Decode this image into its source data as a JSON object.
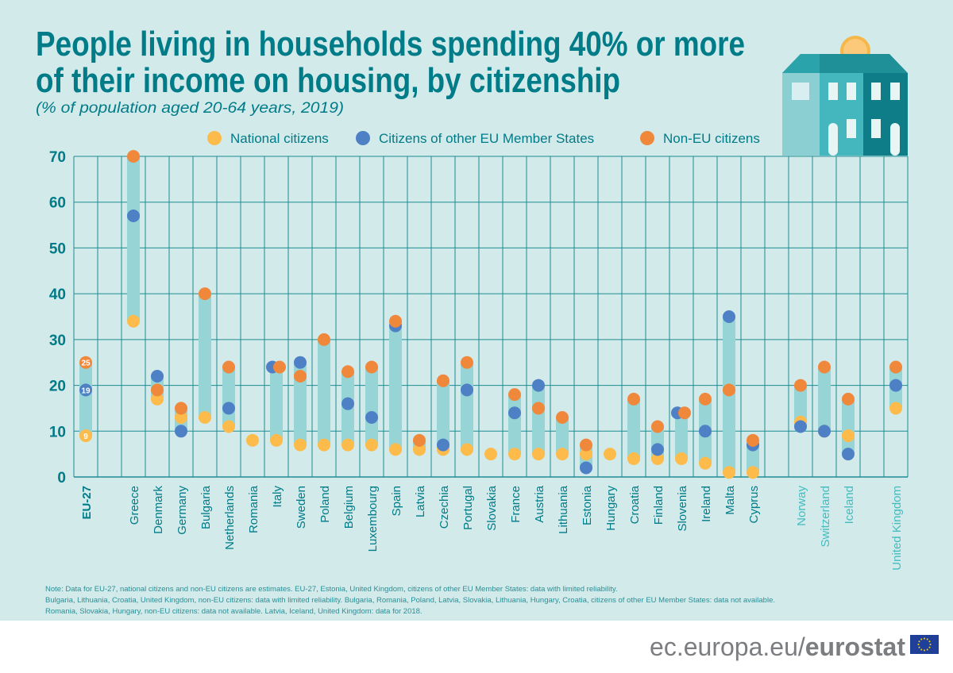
{
  "title_line1": "People living in households spending 40% or more",
  "title_line2": "of their income on housing, by citizenship",
  "subtitle": "(% of population aged 20-64 years, 2019)",
  "colors": {
    "background": "#d2eaea",
    "range_bar": "#96d4d6",
    "national": "#fdbb4c",
    "other_eu": "#4e80c6",
    "non_eu": "#f0883c",
    "title": "#007b88",
    "grid": "#1e8c94"
  },
  "legend": [
    "National citizens",
    "Citizens of other EU Member States",
    "Non-EU citizens"
  ],
  "notes": [
    "Note: Data for EU-27, national citizens and non-EU citizens are estimates. EU-27, Estonia, United Kingdom, citizens of other EU Member States: data with limited reliability.",
    "Bulgaria, Lithuania, Croatia, United Kingdom, non-EU citizens: data with limited reliability. Bulgaria, Romania, Poland, Latvia, Slovakia, Lithuania, Hungary, Croatia, citizens of other EU Member States: data not available.",
    "Romania, Slovakia, Hungary, non-EU citizens: data not available. Latvia, Iceland, United Kingdom: data for 2018."
  ],
  "footer": {
    "site": "ec.europa.eu/",
    "brand": "eurostat"
  },
  "chart_data": {
    "type": "dot-range",
    "ylim": [
      0,
      70
    ],
    "yticks": [
      0,
      10,
      20,
      30,
      40,
      50,
      60,
      70
    ],
    "grid": true,
    "legend_position": "top",
    "series_names": [
      "National citizens",
      "Citizens of other EU Member States",
      "Non-EU citizens"
    ],
    "categories": [
      {
        "name": "EU-27",
        "group": "eu27",
        "slot": 0,
        "national": 9,
        "other_eu": 19,
        "non_eu": 25,
        "labels_shown": true
      },
      {
        "name": "Greece",
        "group": "eu",
        "slot": 2,
        "national": 34,
        "other_eu": 57,
        "non_eu": 70
      },
      {
        "name": "Denmark",
        "group": "eu",
        "slot": 3,
        "national": 17,
        "other_eu": 22,
        "non_eu": 19
      },
      {
        "name": "Germany",
        "group": "eu",
        "slot": 4,
        "national": 13,
        "other_eu": 10,
        "non_eu": 15
      },
      {
        "name": "Bulgaria",
        "group": "eu",
        "slot": 5,
        "national": 13,
        "other_eu": null,
        "non_eu": 40
      },
      {
        "name": "Netherlands",
        "group": "eu",
        "slot": 6,
        "national": 11,
        "other_eu": 15,
        "non_eu": 24
      },
      {
        "name": "Romania",
        "group": "eu",
        "slot": 7,
        "national": 8,
        "other_eu": null,
        "non_eu": null
      },
      {
        "name": "Italy",
        "group": "eu",
        "slot": 8,
        "national": 8,
        "other_eu": 24,
        "non_eu": 24
      },
      {
        "name": "Sweden",
        "group": "eu",
        "slot": 9,
        "national": 7,
        "other_eu": 25,
        "non_eu": 22
      },
      {
        "name": "Poland",
        "group": "eu",
        "slot": 10,
        "national": 7,
        "other_eu": null,
        "non_eu": 30
      },
      {
        "name": "Belgium",
        "group": "eu",
        "slot": 11,
        "national": 7,
        "other_eu": 16,
        "non_eu": 23
      },
      {
        "name": "Luxembourg",
        "group": "eu",
        "slot": 12,
        "national": 7,
        "other_eu": 13,
        "non_eu": 24
      },
      {
        "name": "Spain",
        "group": "eu",
        "slot": 13,
        "national": 6,
        "other_eu": 33,
        "non_eu": 34
      },
      {
        "name": "Latvia",
        "group": "eu",
        "slot": 14,
        "national": 6,
        "other_eu": null,
        "non_eu": 8
      },
      {
        "name": "Czechia",
        "group": "eu",
        "slot": 15,
        "national": 6,
        "other_eu": 7,
        "non_eu": 21
      },
      {
        "name": "Portugal",
        "group": "eu",
        "slot": 16,
        "national": 6,
        "other_eu": 19,
        "non_eu": 25
      },
      {
        "name": "Slovakia",
        "group": "eu",
        "slot": 17,
        "national": 5,
        "other_eu": null,
        "non_eu": null
      },
      {
        "name": "France",
        "group": "eu",
        "slot": 18,
        "national": 5,
        "other_eu": 14,
        "non_eu": 18
      },
      {
        "name": "Austria",
        "group": "eu",
        "slot": 19,
        "national": 5,
        "other_eu": 20,
        "non_eu": 15
      },
      {
        "name": "Lithuania",
        "group": "eu",
        "slot": 20,
        "national": 5,
        "other_eu": null,
        "non_eu": 13
      },
      {
        "name": "Estonia",
        "group": "eu",
        "slot": 21,
        "national": 5,
        "other_eu": 2,
        "non_eu": 7
      },
      {
        "name": "Hungary",
        "group": "eu",
        "slot": 22,
        "national": 5,
        "other_eu": null,
        "non_eu": null
      },
      {
        "name": "Croatia",
        "group": "eu",
        "slot": 23,
        "national": 4,
        "other_eu": null,
        "non_eu": 17
      },
      {
        "name": "Finland",
        "group": "eu",
        "slot": 24,
        "national": 4,
        "other_eu": 6,
        "non_eu": 11
      },
      {
        "name": "Slovenia",
        "group": "eu",
        "slot": 25,
        "national": 4,
        "other_eu": 14,
        "non_eu": 14
      },
      {
        "name": "Ireland",
        "group": "eu",
        "slot": 26,
        "national": 3,
        "other_eu": 10,
        "non_eu": 17
      },
      {
        "name": "Malta",
        "group": "eu",
        "slot": 27,
        "national": 1,
        "other_eu": 35,
        "non_eu": 19
      },
      {
        "name": "Cyprus",
        "group": "eu",
        "slot": 28,
        "national": 1,
        "other_eu": 7,
        "non_eu": 8
      },
      {
        "name": "Norway",
        "group": "efta",
        "slot": 30,
        "national": 12,
        "other_eu": 11,
        "non_eu": 20
      },
      {
        "name": "Switzerland",
        "group": "efta",
        "slot": 31,
        "national": 10,
        "other_eu": 10,
        "non_eu": 24
      },
      {
        "name": "Iceland",
        "group": "efta",
        "slot": 32,
        "national": 9,
        "other_eu": 5,
        "non_eu": 17
      },
      {
        "name": "United Kingdom",
        "group": "efta",
        "slot": 34,
        "national": 15,
        "other_eu": 20,
        "non_eu": 24
      }
    ]
  }
}
